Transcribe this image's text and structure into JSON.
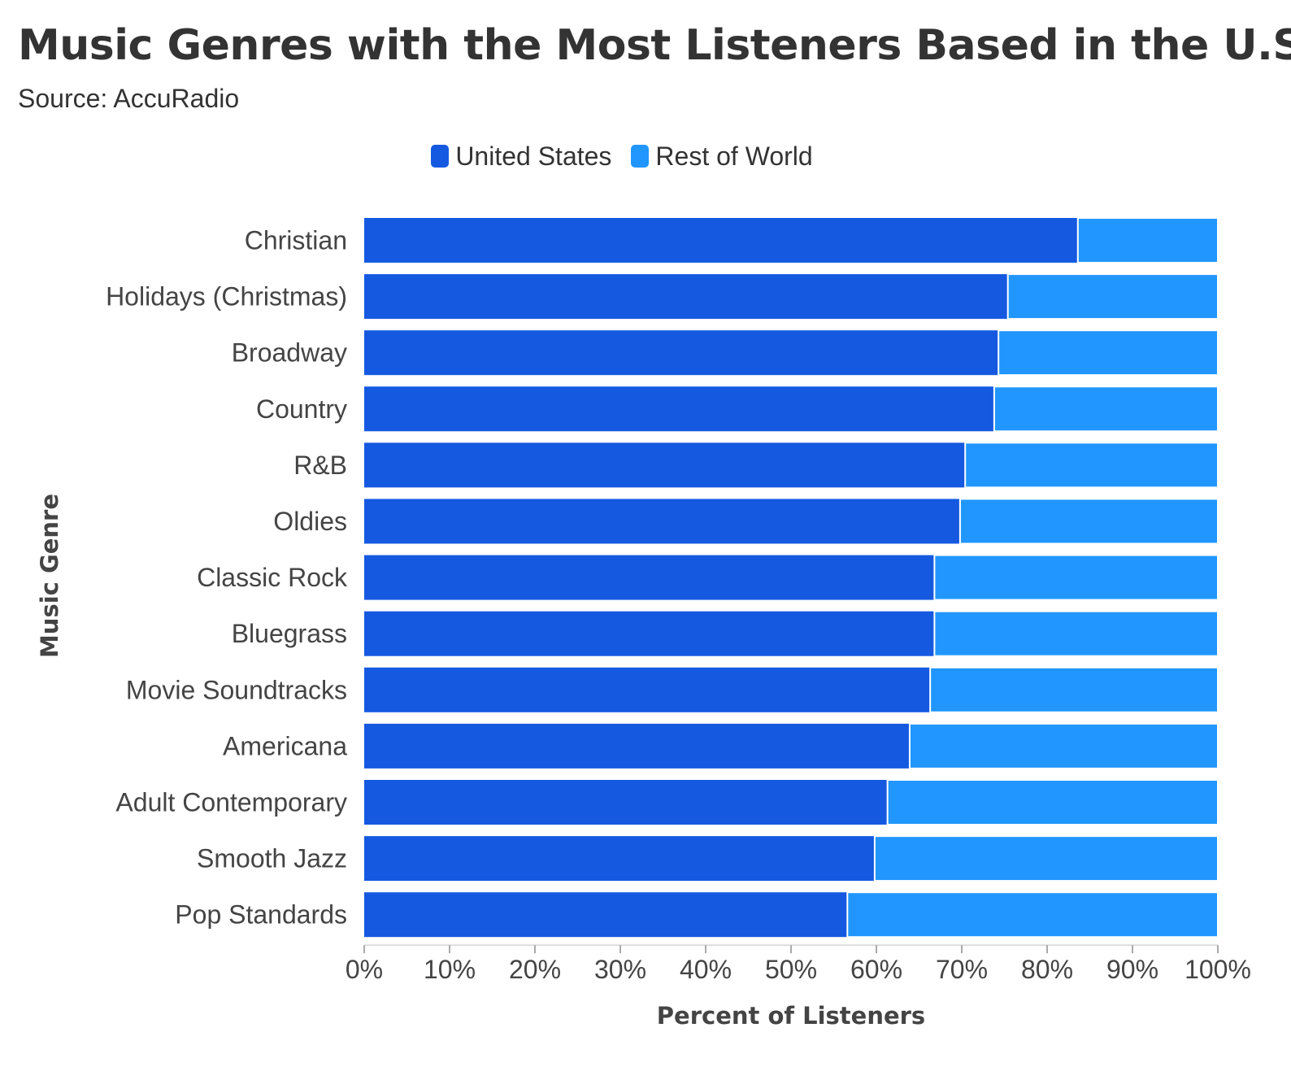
{
  "title": "Music Genres with the Most Listeners Based in the U.S.",
  "subtitle": "Source: AccuRadio",
  "legend": {
    "placement": "top-center",
    "items": [
      {
        "label": "United States",
        "color": "#1559e0"
      },
      {
        "label": "Rest of World",
        "color": "#2196ff"
      }
    ]
  },
  "chart_data": {
    "type": "bar",
    "orientation": "horizontal",
    "stacked": true,
    "xlabel": "Percent of Listeners",
    "ylabel": "Music Genre",
    "xlim": [
      0,
      100
    ],
    "x_ticks": [
      "0%",
      "10%",
      "20%",
      "30%",
      "40%",
      "50%",
      "60%",
      "70%",
      "80%",
      "90%",
      "100%"
    ],
    "grid": false,
    "categories": [
      "Christian",
      "Holidays (Christmas)",
      "Broadway",
      "Country",
      "R&B",
      "Oldies",
      "Classic Rock",
      "Bluegrass",
      "Movie Soundtracks",
      "Americana",
      "Adult Contemporary",
      "Smooth Jazz",
      "Pop Standards"
    ],
    "series": [
      {
        "name": "United States",
        "color": "#1559e0",
        "values": [
          83.6,
          75.4,
          74.3,
          73.8,
          70.4,
          69.8,
          66.8,
          66.8,
          66.3,
          63.9,
          61.3,
          59.8,
          56.6
        ]
      },
      {
        "name": "Rest of World",
        "color": "#2196ff",
        "values": [
          16.4,
          24.6,
          25.7,
          26.2,
          29.6,
          30.2,
          33.2,
          33.2,
          33.7,
          36.1,
          38.7,
          40.2,
          43.4
        ]
      }
    ]
  }
}
